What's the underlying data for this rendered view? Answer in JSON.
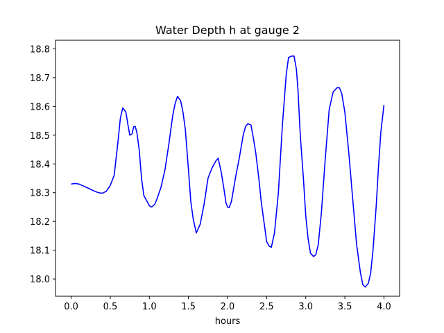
{
  "chart_data": {
    "type": "line",
    "title": "Water Depth h at gauge 2",
    "xlabel": "hours",
    "ylabel": "",
    "xlim": [
      -0.2,
      4.2
    ],
    "ylim": [
      17.94,
      18.83
    ],
    "xticks": [
      0.0,
      0.5,
      1.0,
      1.5,
      2.0,
      2.5,
      3.0,
      3.5,
      4.0
    ],
    "xtick_labels": [
      "0.0",
      "0.5",
      "1.0",
      "1.5",
      "2.0",
      "2.5",
      "3.0",
      "3.5",
      "4.0"
    ],
    "yticks": [
      18.0,
      18.1,
      18.2,
      18.3,
      18.4,
      18.5,
      18.6,
      18.7,
      18.8
    ],
    "ytick_labels": [
      "18.0",
      "18.1",
      "18.2",
      "18.3",
      "18.4",
      "18.5",
      "18.6",
      "18.7",
      "18.8"
    ],
    "grid": false,
    "line_color": "#0000ff",
    "series": [
      {
        "x": [
          0.0,
          0.05,
          0.1,
          0.2,
          0.3,
          0.35,
          0.4,
          0.45,
          0.5,
          0.55,
          0.6,
          0.63,
          0.66,
          0.7,
          0.73,
          0.75,
          0.78,
          0.8,
          0.82,
          0.84,
          0.87,
          0.9,
          0.93,
          0.97,
          1.0,
          1.03,
          1.07,
          1.1,
          1.15,
          1.2,
          1.25,
          1.3,
          1.33,
          1.36,
          1.4,
          1.43,
          1.46,
          1.5,
          1.53,
          1.56,
          1.6,
          1.65,
          1.7,
          1.75,
          1.8,
          1.85,
          1.88,
          1.92,
          1.95,
          1.98,
          2.0,
          2.02,
          2.05,
          2.1,
          2.15,
          2.2,
          2.23,
          2.26,
          2.3,
          2.33,
          2.36,
          2.4,
          2.43,
          2.47,
          2.5,
          2.53,
          2.56,
          2.6,
          2.65,
          2.7,
          2.75,
          2.78,
          2.82,
          2.85,
          2.88,
          2.9,
          2.93,
          2.97,
          3.0,
          3.03,
          3.06,
          3.1,
          3.13,
          3.16,
          3.2,
          3.25,
          3.3,
          3.35,
          3.4,
          3.43,
          3.46,
          3.5,
          3.55,
          3.6,
          3.65,
          3.7,
          3.73,
          3.76,
          3.8,
          3.83,
          3.86,
          3.9,
          3.93,
          3.96,
          4.0
        ],
        "y": [
          18.33,
          18.332,
          18.33,
          18.318,
          18.305,
          18.3,
          18.298,
          18.305,
          18.325,
          18.36,
          18.48,
          18.56,
          18.595,
          18.58,
          18.53,
          18.5,
          18.505,
          18.53,
          18.53,
          18.51,
          18.45,
          18.35,
          18.29,
          18.27,
          18.255,
          18.25,
          18.26,
          18.28,
          18.32,
          18.38,
          18.47,
          18.57,
          18.61,
          18.635,
          18.62,
          18.58,
          18.52,
          18.38,
          18.27,
          18.21,
          18.16,
          18.19,
          18.26,
          18.35,
          18.385,
          18.41,
          18.42,
          18.37,
          18.32,
          18.265,
          18.25,
          18.248,
          18.27,
          18.35,
          18.42,
          18.5,
          18.53,
          18.54,
          18.535,
          18.49,
          18.44,
          18.35,
          18.27,
          18.19,
          18.13,
          18.115,
          18.11,
          18.16,
          18.3,
          18.53,
          18.71,
          18.77,
          18.775,
          18.775,
          18.73,
          18.66,
          18.5,
          18.35,
          18.22,
          18.14,
          18.09,
          18.078,
          18.085,
          18.12,
          18.23,
          18.42,
          18.59,
          18.65,
          18.665,
          18.665,
          18.645,
          18.58,
          18.44,
          18.28,
          18.12,
          18.02,
          17.98,
          17.972,
          17.985,
          18.02,
          18.1,
          18.25,
          18.39,
          18.51,
          18.605
        ]
      }
    ]
  }
}
